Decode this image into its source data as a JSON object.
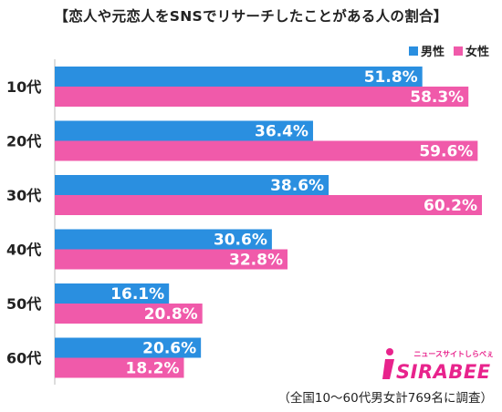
{
  "chart_data": {
    "type": "bar",
    "orientation": "horizontal",
    "title": "【恋人や元恋人をSNSでリサーチしたことがある人の割合】",
    "categories": [
      "10代",
      "20代",
      "30代",
      "40代",
      "50代",
      "60代"
    ],
    "series": [
      {
        "name": "男性",
        "color": "#2a8fe0",
        "values": [
          51.8,
          36.4,
          38.6,
          30.6,
          16.1,
          20.6
        ],
        "labels": [
          "51.8%",
          "36.4%",
          "38.6%",
          "30.6%",
          "16.1%",
          "20.6%"
        ]
      },
      {
        "name": "女性",
        "color": "#f05aaa",
        "values": [
          58.3,
          59.6,
          60.2,
          32.8,
          20.8,
          18.2
        ],
        "labels": [
          "58.3%",
          "59.6%",
          "60.2%",
          "32.8%",
          "20.8%",
          "18.2%"
        ]
      }
    ],
    "xlim": [
      0,
      60.2
    ],
    "legend_position": "top-right",
    "grid": false,
    "footnote": "（全国10～60代男女計769名に調査）"
  },
  "logo": {
    "text": "SIRABEE",
    "tagline": "ニュースサイトしらべぇ",
    "color": "#e8238c"
  }
}
